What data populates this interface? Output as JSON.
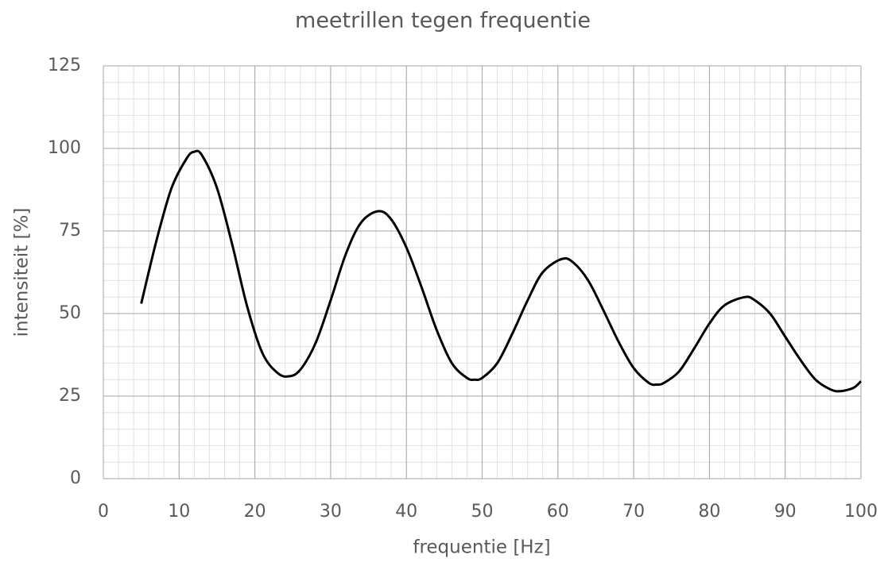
{
  "chart_data": {
    "type": "line",
    "title": "meetrillen tegen frequentie",
    "xlabel": "frequentie  [Hz]",
    "ylabel": "intensiteit  [%]",
    "x": [
      5,
      7,
      9,
      11,
      12,
      13,
      15,
      17,
      19,
      21,
      23,
      24.5,
      26,
      28,
      30,
      32,
      34,
      36.3,
      38,
      40,
      42,
      44,
      46,
      48,
      49,
      50,
      52,
      54,
      56,
      58,
      60.5,
      62,
      64,
      66,
      68,
      70,
      72,
      73,
      74,
      76,
      78,
      80,
      82,
      84.7,
      86,
      88,
      90,
      92,
      94,
      96,
      97.3,
      99,
      100
    ],
    "series": [
      {
        "color": "#000000",
        "values": [
          53,
          72,
          88,
          97,
          99,
          98,
          88,
          71,
          52,
          38,
          32,
          31,
          33,
          41,
          54,
          68,
          77.5,
          81,
          78.5,
          70,
          58,
          45,
          35,
          30.5,
          30,
          30.5,
          35,
          44,
          54,
          62.5,
          66.5,
          65.5,
          60,
          51,
          41.5,
          33.5,
          29,
          28.5,
          29,
          32.5,
          39.5,
          47,
          52.5,
          55,
          54,
          50,
          43,
          36,
          30,
          27,
          26.5,
          27.5,
          29.5
        ]
      }
    ],
    "xlim": [
      0,
      100
    ],
    "xticks": [
      0,
      10,
      20,
      30,
      40,
      50,
      60,
      70,
      80,
      90,
      100
    ],
    "ylim": [
      0,
      125
    ],
    "yticks": [
      0,
      25,
      50,
      75,
      100,
      125
    ],
    "xminor": 2,
    "yminor": 5,
    "grid": true
  }
}
